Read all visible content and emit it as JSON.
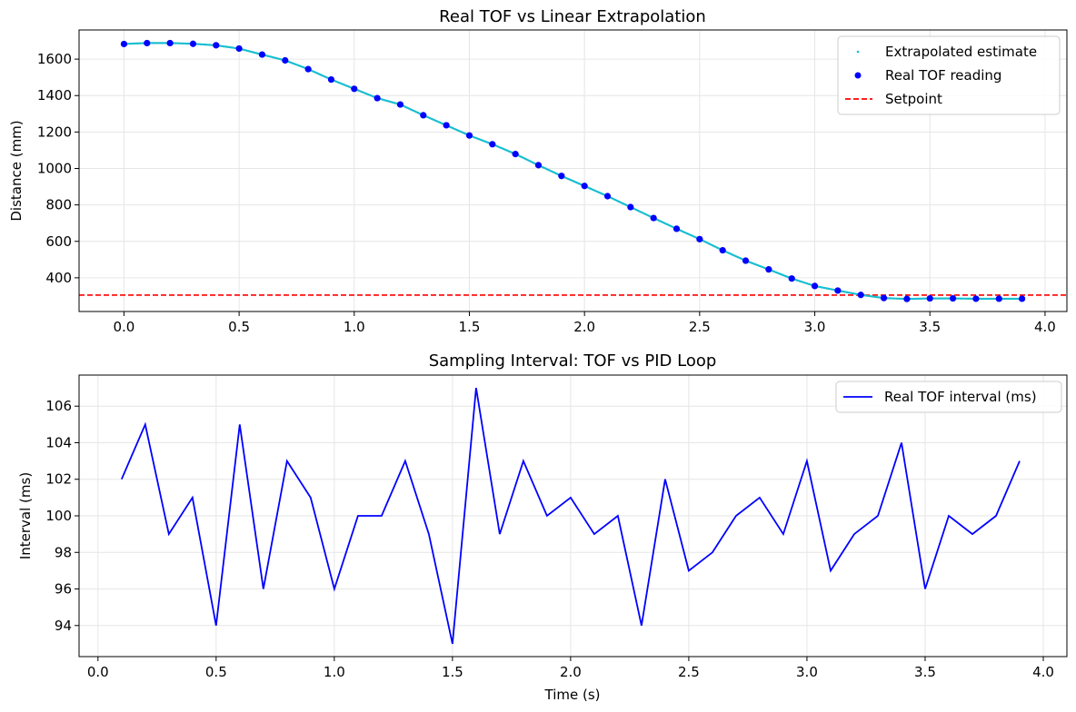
{
  "colors": {
    "extrapolated": "#17becf",
    "real": "#0000ff",
    "setpoint": "#ff0000",
    "interval": "#0000ff",
    "grid": "#e6e6e6"
  },
  "chart_data": [
    {
      "type": "line",
      "title": "Real TOF vs Linear Extrapolation",
      "xlabel": "",
      "ylabel": "Distance (mm)",
      "xlim": [
        -0.195,
        4.095
      ],
      "ylim": [
        215,
        1760
      ],
      "xticks": [
        0.0,
        0.5,
        1.0,
        1.5,
        2.0,
        2.5,
        3.0,
        3.5,
        4.0
      ],
      "xtick_labels": [
        "0.0",
        "0.5",
        "1.0",
        "1.5",
        "2.0",
        "2.5",
        "3.0",
        "3.5",
        "4.0"
      ],
      "yticks": [
        400,
        600,
        800,
        1000,
        1200,
        1400,
        1600
      ],
      "ytick_labels": [
        "400",
        "600",
        "800",
        "1000",
        "1200",
        "1400",
        "1600"
      ],
      "grid": true,
      "legend_position": "top-right",
      "legend": [
        "Extrapolated estimate",
        "Real TOF reading",
        "Setpoint"
      ],
      "setpoint": 305,
      "series": [
        {
          "name": "Real TOF reading",
          "style": "markers",
          "x": [
            0.0,
            0.1,
            0.2,
            0.3,
            0.4,
            0.5,
            0.6,
            0.7,
            0.8,
            0.9,
            1.0,
            1.1,
            1.2,
            1.3,
            1.4,
            1.5,
            1.6,
            1.7,
            1.8,
            1.9,
            2.0,
            2.1,
            2.2,
            2.3,
            2.4,
            2.5,
            2.6,
            2.7,
            2.8,
            2.9,
            3.0,
            3.1,
            3.2,
            3.3,
            3.4,
            3.5,
            3.6,
            3.7,
            3.8,
            3.9
          ],
          "y": [
            1683,
            1688,
            1688,
            1684,
            1676,
            1658,
            1625,
            1593,
            1545,
            1488,
            1437,
            1386,
            1351,
            1292,
            1237,
            1181,
            1133,
            1079,
            1018,
            959,
            904,
            848,
            788,
            728,
            669,
            612,
            551,
            494,
            446,
            396,
            355,
            330,
            306,
            289,
            284,
            287,
            287,
            285,
            285,
            285
          ]
        },
        {
          "name": "Extrapolated estimate",
          "style": "dotted-line",
          "x": [
            0.0,
            0.1,
            0.2,
            0.3,
            0.4,
            0.5,
            0.6,
            0.7,
            0.8,
            0.9,
            1.0,
            1.1,
            1.2,
            1.3,
            1.4,
            1.5,
            1.6,
            1.7,
            1.8,
            1.9,
            2.0,
            2.1,
            2.2,
            2.3,
            2.4,
            2.5,
            2.6,
            2.7,
            2.8,
            2.9,
            3.0,
            3.1,
            3.2,
            3.3,
            3.4,
            3.5,
            3.6,
            3.7,
            3.8,
            3.9
          ],
          "y": [
            1683,
            1688,
            1688,
            1684,
            1676,
            1658,
            1625,
            1593,
            1545,
            1488,
            1437,
            1386,
            1351,
            1292,
            1237,
            1181,
            1133,
            1079,
            1018,
            959,
            904,
            848,
            788,
            728,
            669,
            612,
            551,
            494,
            446,
            396,
            355,
            330,
            306,
            289,
            284,
            287,
            287,
            285,
            285,
            285
          ]
        }
      ]
    },
    {
      "type": "line",
      "title": "Sampling Interval: TOF vs PID Loop",
      "xlabel": "Time (s)",
      "ylabel": "Interval (ms)",
      "xlim": [
        -0.08,
        4.1
      ],
      "ylim": [
        92.3,
        107.7
      ],
      "xticks": [
        0.0,
        0.5,
        1.0,
        1.5,
        2.0,
        2.5,
        3.0,
        3.5,
        4.0
      ],
      "xtick_labels": [
        "0.0",
        "0.5",
        "1.0",
        "1.5",
        "2.0",
        "2.5",
        "3.0",
        "3.5",
        "4.0"
      ],
      "yticks": [
        94,
        96,
        98,
        100,
        102,
        104,
        106
      ],
      "ytick_labels": [
        "94",
        "96",
        "98",
        "100",
        "102",
        "104",
        "106"
      ],
      "grid": true,
      "legend_position": "top-right",
      "legend": [
        "Real TOF interval (ms)"
      ],
      "series": [
        {
          "name": "Real TOF interval (ms)",
          "x": [
            0.1,
            0.2,
            0.3,
            0.4,
            0.5,
            0.6,
            0.7,
            0.8,
            0.9,
            1.0,
            1.1,
            1.2,
            1.3,
            1.4,
            1.5,
            1.6,
            1.7,
            1.8,
            1.9,
            2.0,
            2.1,
            2.2,
            2.3,
            2.4,
            2.5,
            2.6,
            2.7,
            2.8,
            2.9,
            3.0,
            3.1,
            3.2,
            3.3,
            3.4,
            3.5,
            3.6,
            3.7,
            3.8,
            3.9
          ],
          "y": [
            102,
            105,
            99,
            101,
            94,
            105,
            96,
            103,
            101,
            96,
            100,
            100,
            103,
            99,
            93,
            107,
            99,
            103,
            100,
            101,
            99,
            100,
            94,
            102,
            97,
            98,
            100,
            101,
            99,
            103,
            97,
            99,
            100,
            104,
            96,
            100,
            99,
            100,
            103
          ]
        }
      ]
    }
  ]
}
